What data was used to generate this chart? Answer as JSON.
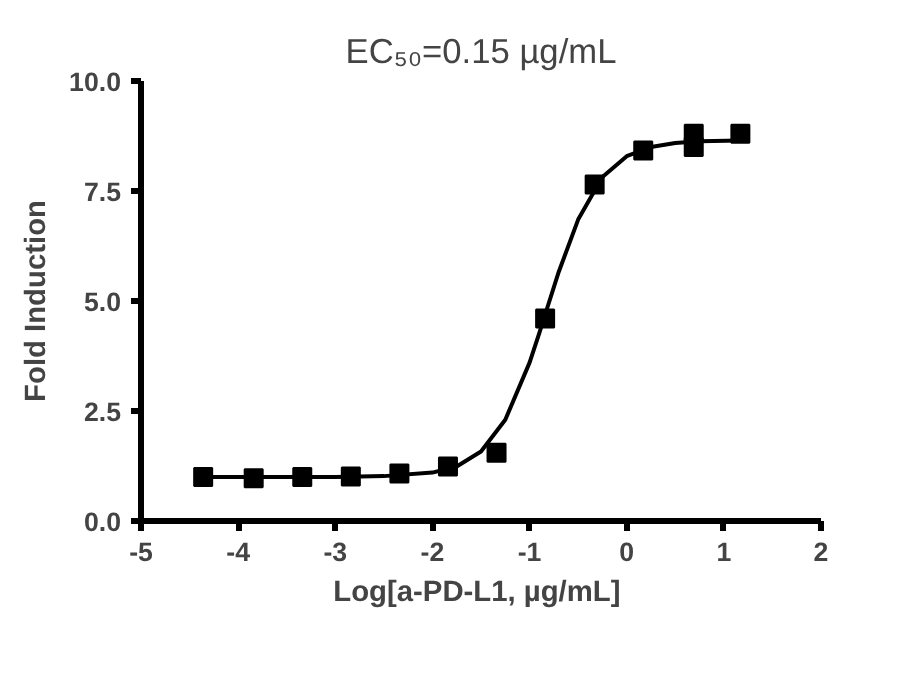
{
  "chart_data": {
    "type": "scatter",
    "title": "EC₅₀=0.15 µg/mL",
    "xlabel": "Log[a-PD-L1,  µg/mL]",
    "ylabel": "Fold Induction",
    "xlim": [
      -5,
      2
    ],
    "ylim": [
      0,
      10
    ],
    "xticks": [
      -5,
      -4,
      -3,
      -2,
      -1,
      0,
      1,
      2
    ],
    "yticks": [
      {
        "value": 0,
        "label": "0.0"
      },
      {
        "value": 2.5,
        "label": "2.5"
      },
      {
        "value": 5,
        "label": "5.0"
      },
      {
        "value": 7.5,
        "label": "7.5"
      },
      {
        "value": 10,
        "label": "10.0"
      }
    ],
    "grid": false,
    "marker": "square",
    "series": [
      {
        "color": "#000000",
        "x": [
          -4.36,
          -3.84,
          -3.34,
          -2.84,
          -2.34,
          -1.84,
          -1.34,
          -0.84,
          -0.33,
          0.17,
          0.69,
          0.69,
          1.17
        ],
        "values": [
          1.0,
          0.97,
          1.0,
          1.01,
          1.08,
          1.24,
          1.55,
          4.6,
          7.65,
          8.42,
          8.8,
          8.5,
          8.8
        ]
      },
      {
        "type": "line",
        "color": "#000000",
        "marker": "none",
        "line_style": "solid",
        "x": [
          -4.36,
          -3,
          -2.5,
          -2,
          -1.75,
          -1.5,
          -1.25,
          -1,
          -0.9,
          -0.82,
          -0.7,
          -0.5,
          -0.25,
          0,
          0.25,
          0.5,
          0.75,
          1.17
        ],
        "values": [
          1.0,
          1.0,
          1.02,
          1.1,
          1.24,
          1.58,
          2.3,
          3.6,
          4.27,
          4.83,
          5.66,
          6.85,
          7.82,
          8.29,
          8.5,
          8.59,
          8.63,
          8.65
        ]
      }
    ]
  }
}
